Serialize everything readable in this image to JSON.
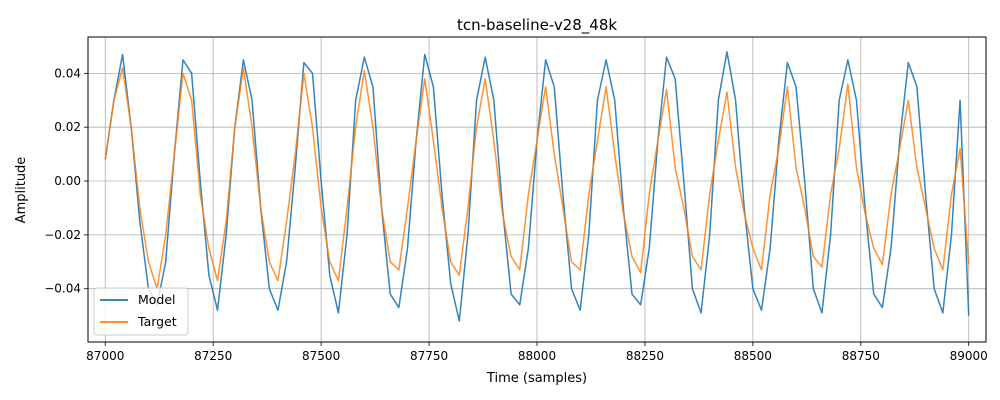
{
  "chart_data": {
    "type": "line",
    "title": "tcn-baseline-v28_48k",
    "xlabel": "Time (samples)",
    "ylabel": "Amplitude",
    "xlim": [
      86960,
      89040
    ],
    "ylim": [
      -0.0598,
      0.0535
    ],
    "x_ticks": [
      87000,
      87250,
      87500,
      87750,
      88000,
      88250,
      88500,
      88750,
      89000
    ],
    "y_ticks": [
      -0.04,
      -0.02,
      0.0,
      0.02,
      0.04
    ],
    "y_tick_labels": [
      "−0.04",
      "−0.02",
      "0.00",
      "0.02",
      "0.04"
    ],
    "grid": true,
    "legend": "lower-left",
    "x_start": 87000,
    "x_step": 20,
    "series": [
      {
        "name": "Model",
        "color": "#1f77b4",
        "values": [
          0.008,
          0.03,
          0.047,
          0.02,
          -0.015,
          -0.04,
          -0.046,
          -0.03,
          0.01,
          0.045,
          0.04,
          0.0,
          -0.035,
          -0.048,
          -0.02,
          0.02,
          0.045,
          0.03,
          -0.01,
          -0.04,
          -0.048,
          -0.03,
          0.005,
          0.044,
          0.04,
          0.0,
          -0.035,
          -0.049,
          -0.02,
          0.03,
          0.046,
          0.035,
          -0.01,
          -0.042,
          -0.047,
          -0.025,
          0.015,
          0.047,
          0.035,
          -0.005,
          -0.038,
          -0.052,
          -0.02,
          0.03,
          0.046,
          0.03,
          -0.01,
          -0.042,
          -0.046,
          -0.025,
          0.015,
          0.045,
          0.035,
          -0.005,
          -0.04,
          -0.048,
          -0.02,
          0.03,
          0.045,
          0.03,
          -0.01,
          -0.042,
          -0.046,
          -0.025,
          0.015,
          0.046,
          0.038,
          0.0,
          -0.04,
          -0.049,
          -0.02,
          0.03,
          0.048,
          0.03,
          -0.01,
          -0.04,
          -0.048,
          -0.025,
          0.015,
          0.044,
          0.035,
          0.0,
          -0.04,
          -0.049,
          -0.02,
          0.03,
          0.045,
          0.03,
          -0.01,
          -0.042,
          -0.047,
          -0.025,
          0.015,
          0.044,
          0.035,
          -0.005,
          -0.04,
          -0.049,
          -0.02,
          0.03,
          -0.05
        ]
      },
      {
        "name": "Target",
        "color": "#ff7f0e",
        "values": [
          0.008,
          0.03,
          0.042,
          0.02,
          -0.01,
          -0.03,
          -0.04,
          -0.02,
          0.01,
          0.04,
          0.03,
          -0.005,
          -0.025,
          -0.037,
          -0.015,
          0.02,
          0.042,
          0.02,
          -0.01,
          -0.03,
          -0.037,
          -0.015,
          0.01,
          0.04,
          0.02,
          -0.01,
          -0.03,
          -0.037,
          -0.01,
          0.02,
          0.041,
          0.02,
          -0.01,
          -0.03,
          -0.033,
          -0.01,
          0.015,
          0.038,
          0.015,
          -0.01,
          -0.03,
          -0.035,
          -0.01,
          0.02,
          0.038,
          0.015,
          -0.012,
          -0.028,
          -0.033,
          -0.005,
          0.015,
          0.035,
          0.01,
          -0.01,
          -0.03,
          -0.033,
          -0.005,
          0.015,
          0.035,
          0.01,
          -0.012,
          -0.028,
          -0.034,
          -0.005,
          0.015,
          0.034,
          0.005,
          -0.01,
          -0.028,
          -0.033,
          -0.005,
          0.015,
          0.033,
          0.005,
          -0.012,
          -0.025,
          -0.033,
          -0.005,
          0.012,
          0.035,
          0.005,
          -0.01,
          -0.028,
          -0.032,
          -0.005,
          0.012,
          0.036,
          0.005,
          -0.012,
          -0.025,
          -0.031,
          -0.005,
          0.012,
          0.03,
          0.005,
          -0.01,
          -0.025,
          -0.033,
          -0.005,
          0.012,
          -0.031
        ]
      }
    ]
  }
}
